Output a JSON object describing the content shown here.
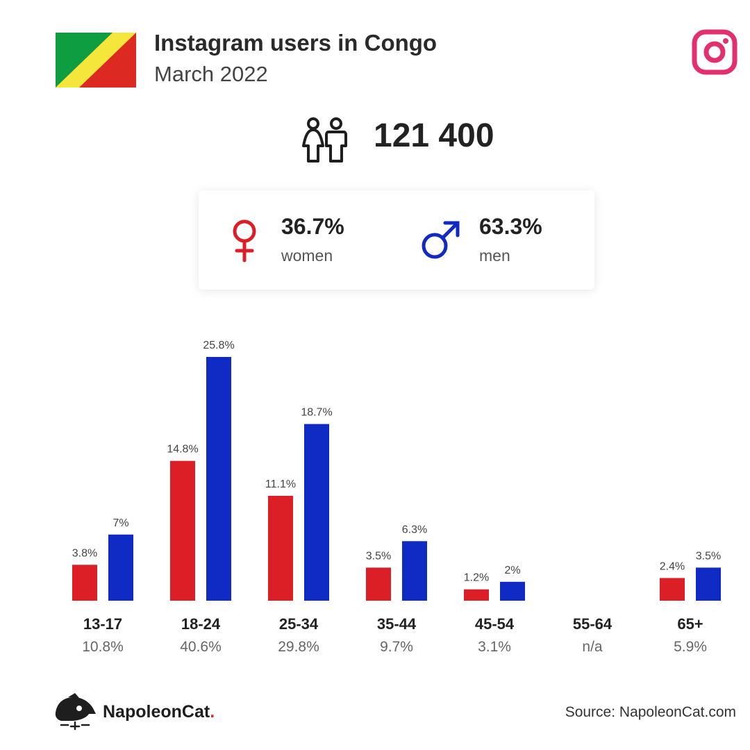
{
  "header": {
    "title": "Instagram users in Congo",
    "subtitle": "March 2022",
    "flag_icon": "congo-flag-icon",
    "platform_icon": "instagram-icon"
  },
  "summary": {
    "total": "121 400",
    "icon": "people-icon"
  },
  "gender": {
    "women": {
      "pct": "36.7%",
      "label": "women",
      "icon": "female-symbol-icon"
    },
    "men": {
      "pct": "63.3%",
      "label": "men",
      "icon": "male-symbol-icon"
    }
  },
  "colors": {
    "women": "#dc1f26",
    "men": "#0f2bc4",
    "instagram": "#e1306c",
    "flag_green": "#0f9d41",
    "flag_yellow": "#f5e63b",
    "flag_red": "#dc2a22"
  },
  "chart_data": {
    "type": "bar",
    "categories": [
      "13-17",
      "18-24",
      "25-34",
      "35-44",
      "45-54",
      "55-64",
      "65+"
    ],
    "category_totals": [
      "10.8%",
      "40.6%",
      "29.8%",
      "9.7%",
      "3.1%",
      "n/a",
      "5.9%"
    ],
    "series": [
      {
        "name": "women",
        "values": [
          3.8,
          14.8,
          11.1,
          3.5,
          1.2,
          null,
          2.4
        ],
        "labels": [
          "3.8%",
          "14.8%",
          "11.1%",
          "3.5%",
          "1.2%",
          "",
          "2.4%"
        ]
      },
      {
        "name": "men",
        "values": [
          7,
          25.8,
          18.7,
          6.3,
          2,
          null,
          3.5
        ],
        "labels": [
          "7%",
          "25.8%",
          "18.7%",
          "6.3%",
          "2%",
          "",
          "3.5%"
        ]
      }
    ],
    "ylim": [
      0,
      25.8
    ],
    "grid": false,
    "legend": "none"
  },
  "footer": {
    "brand_main": "NapoleonCat",
    "brand_dot": ".",
    "source": "Source: NapoleonCat.com",
    "logo_icon": "napoleoncat-logo-icon"
  }
}
